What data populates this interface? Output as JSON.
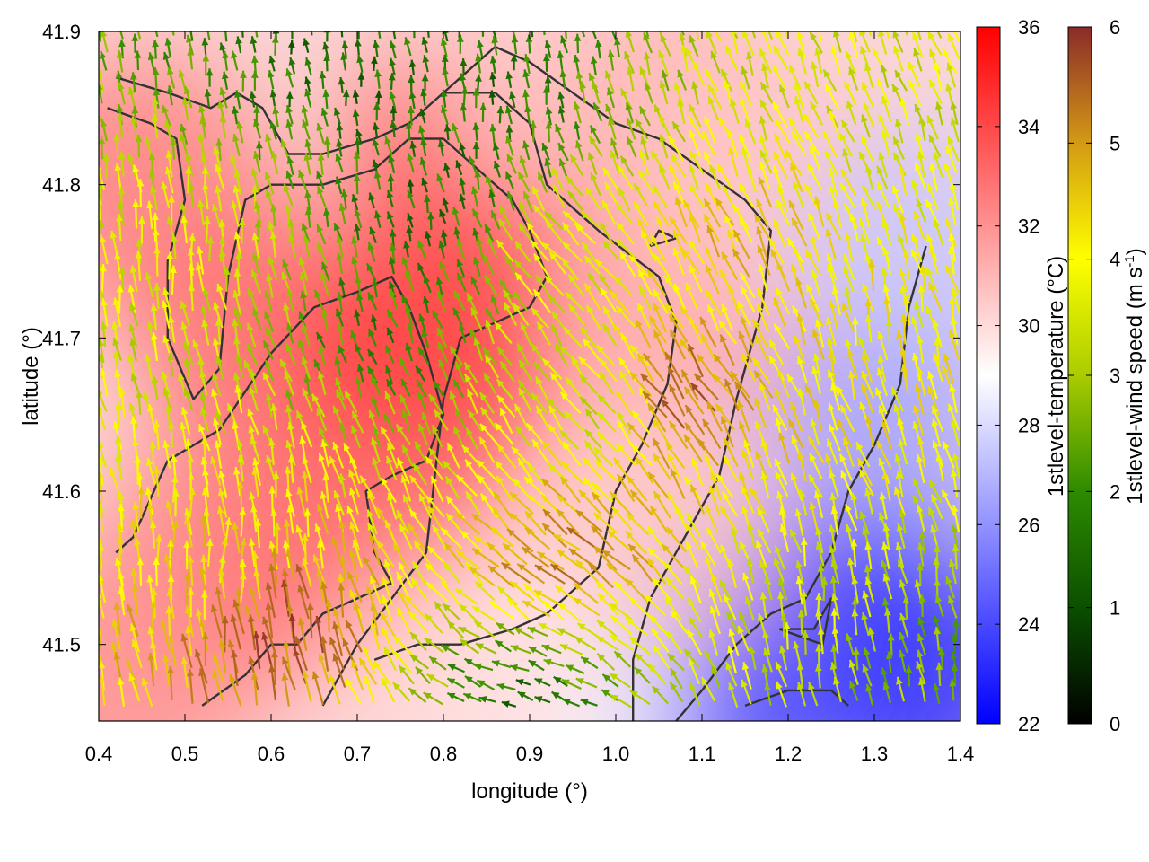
{
  "chart_data": {
    "type": "heatmap",
    "subtype": "temperature field with wind vectors and contour overlay",
    "xlabel": "longitude (°)",
    "ylabel": "latitude (°)",
    "xlim": [
      0.4,
      1.4
    ],
    "ylim": [
      41.45,
      41.9
    ],
    "xticks": [
      "0.4",
      "0.5",
      "0.6",
      "0.7",
      "0.8",
      "0.9",
      "1.0",
      "1.1",
      "1.2",
      "1.3",
      "1.4"
    ],
    "xtick_values": [
      0.4,
      0.5,
      0.6,
      0.7,
      0.8,
      0.9,
      1.0,
      1.1,
      1.2,
      1.3,
      1.4
    ],
    "yticks": [
      "41.5",
      "41.6",
      "41.7",
      "41.8",
      "41.9"
    ],
    "ytick_values": [
      41.5,
      41.6,
      41.7,
      41.8,
      41.9
    ],
    "grid": false,
    "colorbars": [
      {
        "label": "1stlevel-temperature (°C)",
        "range": [
          22,
          36
        ],
        "ticks": [
          "22",
          "24",
          "26",
          "28",
          "30",
          "32",
          "34",
          "36"
        ],
        "tick_values": [
          22,
          24,
          26,
          28,
          30,
          32,
          34,
          36
        ],
        "colors": [
          "#0000ff",
          "#ffffff",
          "#ff0000"
        ]
      },
      {
        "label_main": "1stlevel-wind speed (m s",
        "label_sup": "-1",
        "label_end": ")",
        "range": [
          0,
          6
        ],
        "ticks": [
          "0",
          "1",
          "2",
          "3",
          "4",
          "5",
          "6"
        ],
        "tick_values": [
          0,
          1,
          2,
          3,
          4,
          5,
          6
        ],
        "colors": [
          "#000000",
          "#0b4f00",
          "#2e8b00",
          "#aacc00",
          "#ffff00",
          "#d39a14",
          "#8b2a2a"
        ]
      }
    ],
    "temperature_field": [
      {
        "lon": 0.45,
        "lat": 41.8,
        "value": 32.5
      },
      {
        "lon": 0.6,
        "lat": 41.7,
        "value": 33
      },
      {
        "lon": 0.78,
        "lat": 41.68,
        "value": 34.5
      },
      {
        "lon": 0.85,
        "lat": 41.82,
        "value": 34
      },
      {
        "lon": 0.55,
        "lat": 41.55,
        "value": 32.5
      },
      {
        "lon": 0.7,
        "lat": 41.55,
        "value": 33
      },
      {
        "lon": 0.95,
        "lat": 41.88,
        "value": 30
      },
      {
        "lon": 1.05,
        "lat": 41.85,
        "value": 31
      },
      {
        "lon": 1.1,
        "lat": 41.7,
        "value": 31.5
      },
      {
        "lon": 1.2,
        "lat": 41.8,
        "value": 30.5
      },
      {
        "lon": 1.35,
        "lat": 41.75,
        "value": 27.5
      },
      {
        "lon": 1.3,
        "lat": 41.62,
        "value": 26.5
      },
      {
        "lon": 1.22,
        "lat": 41.5,
        "value": 23
      },
      {
        "lon": 1.35,
        "lat": 41.48,
        "value": 23.5
      },
      {
        "lon": 1.12,
        "lat": 41.48,
        "value": 24.5
      },
      {
        "lon": 0.92,
        "lat": 41.47,
        "value": 29
      },
      {
        "lon": 0.8,
        "lat": 41.46,
        "value": 30
      },
      {
        "lon": 1.05,
        "lat": 41.58,
        "value": 30.5
      },
      {
        "lon": 0.42,
        "lat": 41.47,
        "value": 32
      }
    ],
    "wind_field": [
      {
        "lon": 0.5,
        "lat": 41.75,
        "speed": 3.8,
        "dir_deg": 95
      },
      {
        "lon": 0.55,
        "lat": 41.55,
        "speed": 4.2,
        "dir_deg": 90
      },
      {
        "lon": 0.62,
        "lat": 41.5,
        "speed": 5.6,
        "dir_deg": 100
      },
      {
        "lon": 0.75,
        "lat": 41.7,
        "speed": 1.8,
        "dir_deg": 110
      },
      {
        "lon": 0.78,
        "lat": 41.78,
        "speed": 1.5,
        "dir_deg": 100
      },
      {
        "lon": 0.85,
        "lat": 41.85,
        "speed": 1.6,
        "dir_deg": 95
      },
      {
        "lon": 0.7,
        "lat": 41.88,
        "speed": 1.4,
        "dir_deg": 95
      },
      {
        "lon": 0.95,
        "lat": 41.75,
        "speed": 3.8,
        "dir_deg": 135
      },
      {
        "lon": 1.0,
        "lat": 41.65,
        "speed": 3.2,
        "dir_deg": 130
      },
      {
        "lon": 1.08,
        "lat": 41.65,
        "speed": 5.8,
        "dir_deg": 125
      },
      {
        "lon": 0.95,
        "lat": 41.55,
        "speed": 5.2,
        "dir_deg": 145
      },
      {
        "lon": 1.15,
        "lat": 41.75,
        "speed": 4.5,
        "dir_deg": 115
      },
      {
        "lon": 1.2,
        "lat": 41.62,
        "speed": 4.2,
        "dir_deg": 110
      },
      {
        "lon": 1.3,
        "lat": 41.7,
        "speed": 4.0,
        "dir_deg": 100
      },
      {
        "lon": 1.25,
        "lat": 41.52,
        "speed": 3.5,
        "dir_deg": 95
      },
      {
        "lon": 1.35,
        "lat": 41.5,
        "speed": 2.5,
        "dir_deg": 100
      },
      {
        "lon": 0.9,
        "lat": 41.47,
        "speed": 1.5,
        "dir_deg": 160
      },
      {
        "lon": 1.35,
        "lat": 41.85,
        "speed": 3.5,
        "dir_deg": 110
      }
    ],
    "contour_lines": [
      [
        [
          0.42,
          41.87
        ],
        [
          0.48,
          41.86
        ],
        [
          0.53,
          41.85
        ],
        [
          0.56,
          41.86
        ],
        [
          0.59,
          41.85
        ],
        [
          0.62,
          41.82
        ],
        [
          0.66,
          41.82
        ],
        [
          0.72,
          41.83
        ],
        [
          0.76,
          41.84
        ],
        [
          0.82,
          41.87
        ],
        [
          0.86,
          41.89
        ],
        [
          0.9,
          41.88
        ],
        [
          0.95,
          41.86
        ],
        [
          1.0,
          41.84
        ],
        [
          1.05,
          41.83
        ],
        [
          1.1,
          41.81
        ],
        [
          1.15,
          41.79
        ],
        [
          1.18,
          41.77
        ],
        [
          1.17,
          41.72
        ],
        [
          1.14,
          41.66
        ],
        [
          1.12,
          41.61
        ],
        [
          1.08,
          41.57
        ],
        [
          1.04,
          41.53
        ],
        [
          1.02,
          41.49
        ],
        [
          1.02,
          41.45
        ]
      ],
      [
        [
          0.41,
          41.85
        ],
        [
          0.46,
          41.84
        ],
        [
          0.49,
          41.83
        ],
        [
          0.5,
          41.79
        ],
        [
          0.48,
          41.75
        ],
        [
          0.48,
          41.7
        ],
        [
          0.51,
          41.66
        ],
        [
          0.54,
          41.68
        ],
        [
          0.55,
          41.74
        ],
        [
          0.57,
          41.79
        ],
        [
          0.6,
          41.8
        ],
        [
          0.66,
          41.8
        ],
        [
          0.72,
          41.81
        ],
        [
          0.76,
          41.83
        ],
        [
          0.8,
          41.83
        ],
        [
          0.84,
          41.81
        ],
        [
          0.88,
          41.79
        ],
        [
          0.9,
          41.77
        ],
        [
          0.92,
          41.74
        ],
        [
          0.9,
          41.72
        ],
        [
          0.86,
          41.71
        ],
        [
          0.82,
          41.7
        ],
        [
          0.8,
          41.66
        ],
        [
          0.79,
          41.61
        ],
        [
          0.78,
          41.56
        ],
        [
          0.74,
          41.53
        ],
        [
          0.7,
          41.5
        ],
        [
          0.66,
          41.46
        ]
      ],
      [
        [
          0.42,
          41.56
        ],
        [
          0.44,
          41.57
        ],
        [
          0.48,
          41.62
        ],
        [
          0.54,
          41.64
        ],
        [
          0.6,
          41.69
        ],
        [
          0.65,
          41.72
        ],
        [
          0.7,
          41.73
        ],
        [
          0.74,
          41.74
        ],
        [
          0.76,
          41.72
        ],
        [
          0.78,
          41.69
        ],
        [
          0.8,
          41.65
        ],
        [
          0.78,
          41.62
        ],
        [
          0.74,
          41.61
        ],
        [
          0.71,
          41.6
        ],
        [
          0.72,
          41.56
        ],
        [
          0.74,
          41.54
        ],
        [
          0.7,
          41.53
        ],
        [
          0.66,
          41.52
        ],
        [
          0.63,
          41.5
        ],
        [
          0.6,
          41.5
        ],
        [
          0.57,
          41.48
        ],
        [
          0.52,
          41.46
        ]
      ],
      [
        [
          0.72,
          41.49
        ],
        [
          0.77,
          41.5
        ],
        [
          0.82,
          41.5
        ],
        [
          0.88,
          41.51
        ],
        [
          0.92,
          41.52
        ],
        [
          0.98,
          41.55
        ],
        [
          1.0,
          41.6
        ],
        [
          1.03,
          41.63
        ],
        [
          1.06,
          41.67
        ],
        [
          1.07,
          41.71
        ],
        [
          1.05,
          41.74
        ],
        [
          0.98,
          41.77
        ],
        [
          0.92,
          41.8
        ],
        [
          0.9,
          41.84
        ],
        [
          0.86,
          41.86
        ],
        [
          0.8,
          41.86
        ]
      ],
      [
        [
          1.36,
          41.76
        ],
        [
          1.34,
          41.72
        ],
        [
          1.33,
          41.67
        ],
        [
          1.3,
          41.63
        ],
        [
          1.27,
          41.6
        ],
        [
          1.25,
          41.56
        ],
        [
          1.22,
          41.53
        ],
        [
          1.18,
          41.52
        ],
        [
          1.14,
          41.5
        ],
        [
          1.1,
          41.47
        ],
        [
          1.07,
          41.45
        ]
      ],
      [
        [
          1.15,
          41.46
        ],
        [
          1.2,
          41.47
        ],
        [
          1.25,
          41.47
        ],
        [
          1.27,
          41.46
        ]
      ],
      [
        [
          1.19,
          41.51
        ],
        [
          1.23,
          41.51
        ],
        [
          1.25,
          41.53
        ],
        [
          1.24,
          41.5
        ],
        [
          1.19,
          41.51
        ]
      ],
      [
        [
          1.04,
          41.76
        ],
        [
          1.07,
          41.765
        ],
        [
          1.05,
          41.77
        ],
        [
          1.04,
          41.76
        ]
      ]
    ]
  }
}
